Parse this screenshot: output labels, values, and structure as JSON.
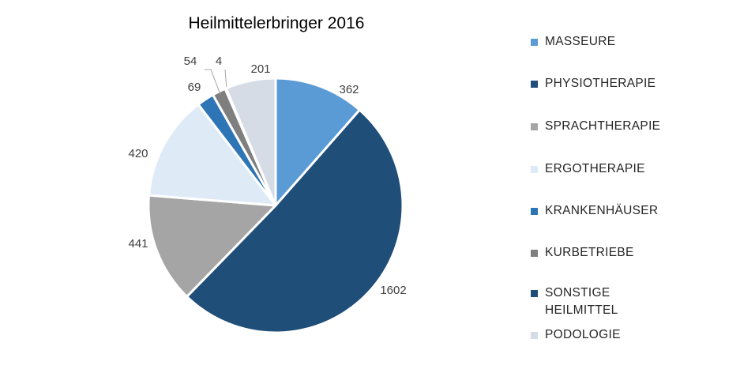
{
  "chart_data": {
    "type": "pie",
    "title": "Heilmittelerbringer 2016",
    "legend_position": "right",
    "slices": [
      {
        "label": "MASSEURE",
        "value": 362,
        "color": "#5b9bd5"
      },
      {
        "label": "PHYSIOTHERAPIE",
        "value": 1602,
        "color": "#1f4e79"
      },
      {
        "label": "SPRACHTHERAPIE",
        "value": 441,
        "color": "#a5a5a5"
      },
      {
        "label": "ERGOTHERAPIE",
        "value": 420,
        "color": "#deebf7"
      },
      {
        "label": "KRANKENHÄUSER",
        "value": 69,
        "color": "#2e75b6"
      },
      {
        "label": "KURBETRIEBE",
        "value": 54,
        "color": "#7f7f7f"
      },
      {
        "label": "SONSTIGE HEILMITTEL",
        "value": 4,
        "color": "#1f4e79"
      },
      {
        "label": "PODOLOGIE",
        "value": 201,
        "color": "#d6dce5"
      }
    ]
  }
}
